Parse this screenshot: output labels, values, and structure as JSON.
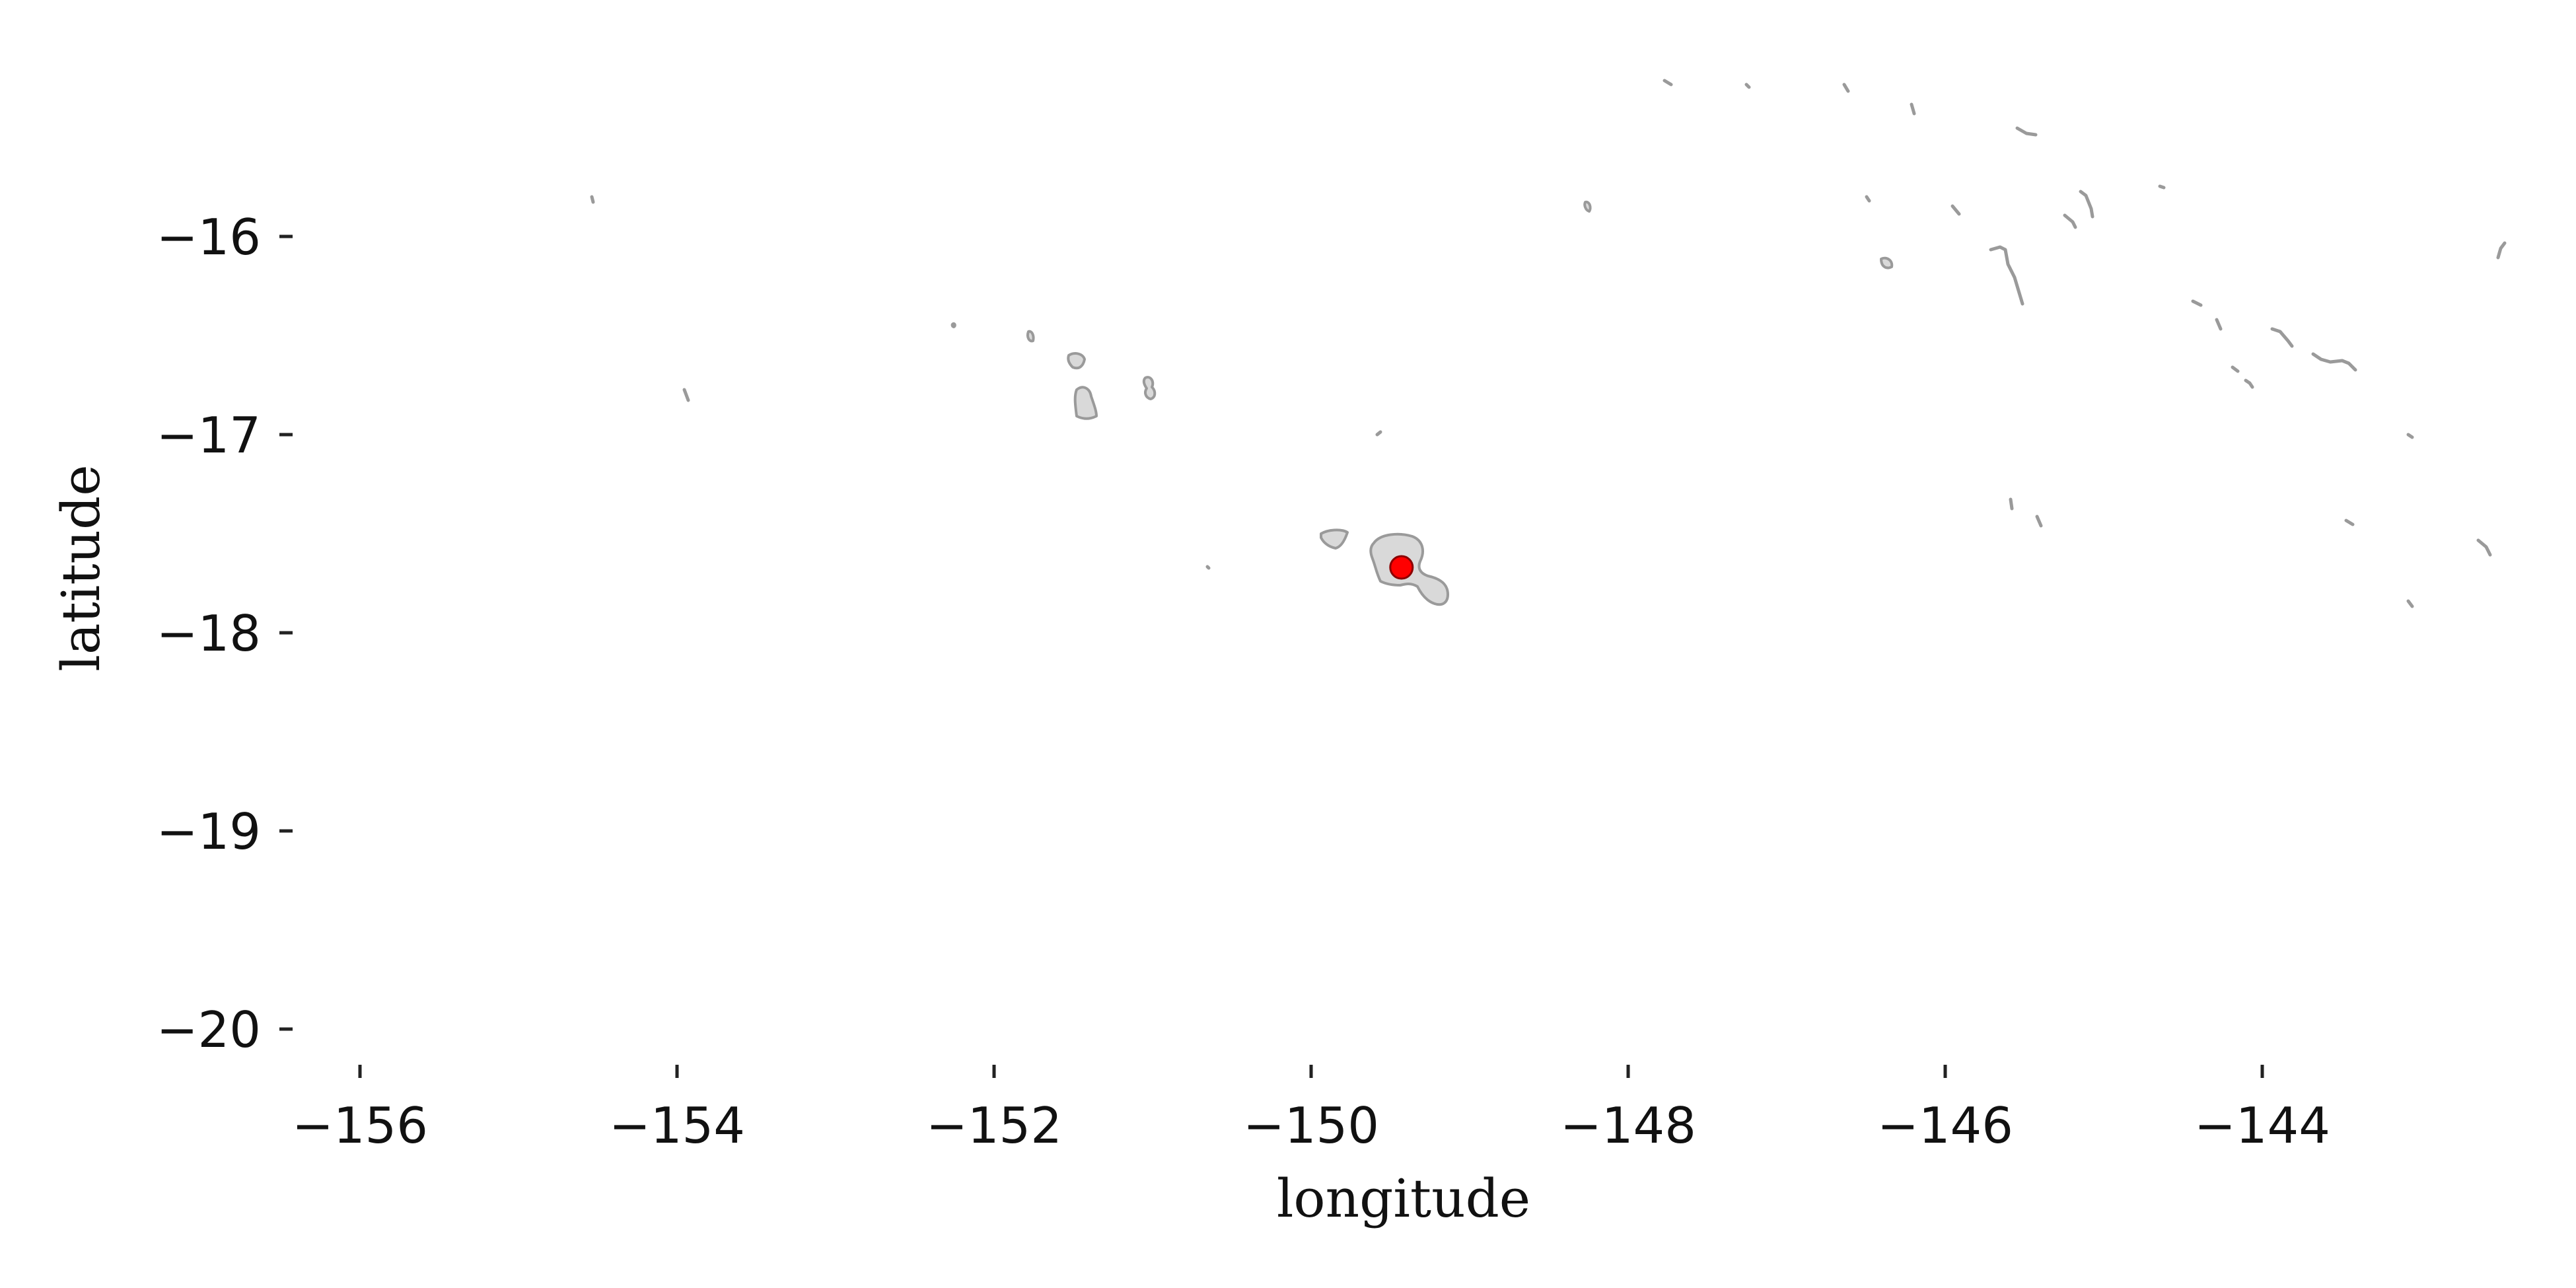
{
  "axes": {
    "xlabel": "longitude",
    "ylabel": "latitude",
    "xlim": [
      -156.4,
      -142.3
    ],
    "ylim": [
      -20.2,
      -14.8
    ],
    "xticks": [
      -156,
      -154,
      -152,
      -150,
      -148,
      -146,
      -144
    ],
    "yticks": [
      -16,
      -17,
      -18,
      -19,
      -20
    ],
    "xtick_labels": [
      "−156",
      "−154",
      "−152",
      "−150",
      "−148",
      "−146",
      "−144"
    ],
    "ytick_labels": [
      "−16",
      "−17",
      "−18",
      "−19",
      "−20"
    ]
  },
  "colors": {
    "land_fill": "#d9d9d9",
    "land_edge": "#9a9a9a",
    "marker_fill": "#ff0000",
    "marker_edge": "#8b0000"
  },
  "marker": {
    "lon": -149.43,
    "lat": -17.67
  }
}
